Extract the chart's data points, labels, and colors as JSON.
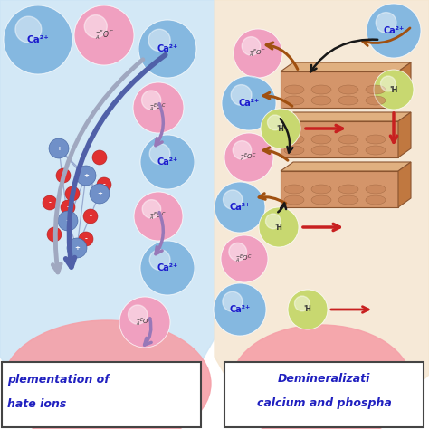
{
  "bg_color": "#ffffff",
  "left_bg_color": "#cce4f5",
  "right_bg_color": "#f5e6d0",
  "tooth_color": "#f5a0a8",
  "ca_color": "#85b8e0",
  "phos_color": "#f0a0c0",
  "h_color": "#c8d870",
  "arrow_blue": "#5060a8",
  "arrow_purple": "#9878b8",
  "arrow_gray": "#a0a8c0",
  "arrow_red": "#c82020",
  "arrow_brown": "#a05010",
  "arrow_black": "#181818",
  "label_color": "#2020c0",
  "left_label1": "plementation of",
  "left_label2": "hate ions",
  "right_label1": "Demineralizati",
  "right_label2": "calcium and phospha",
  "lattice_blue": "#7090c8",
  "lattice_red": "#e03030",
  "enamel_face": "#d4956a",
  "enamel_edge": "#8b5530",
  "enamel_side": "#c07840"
}
